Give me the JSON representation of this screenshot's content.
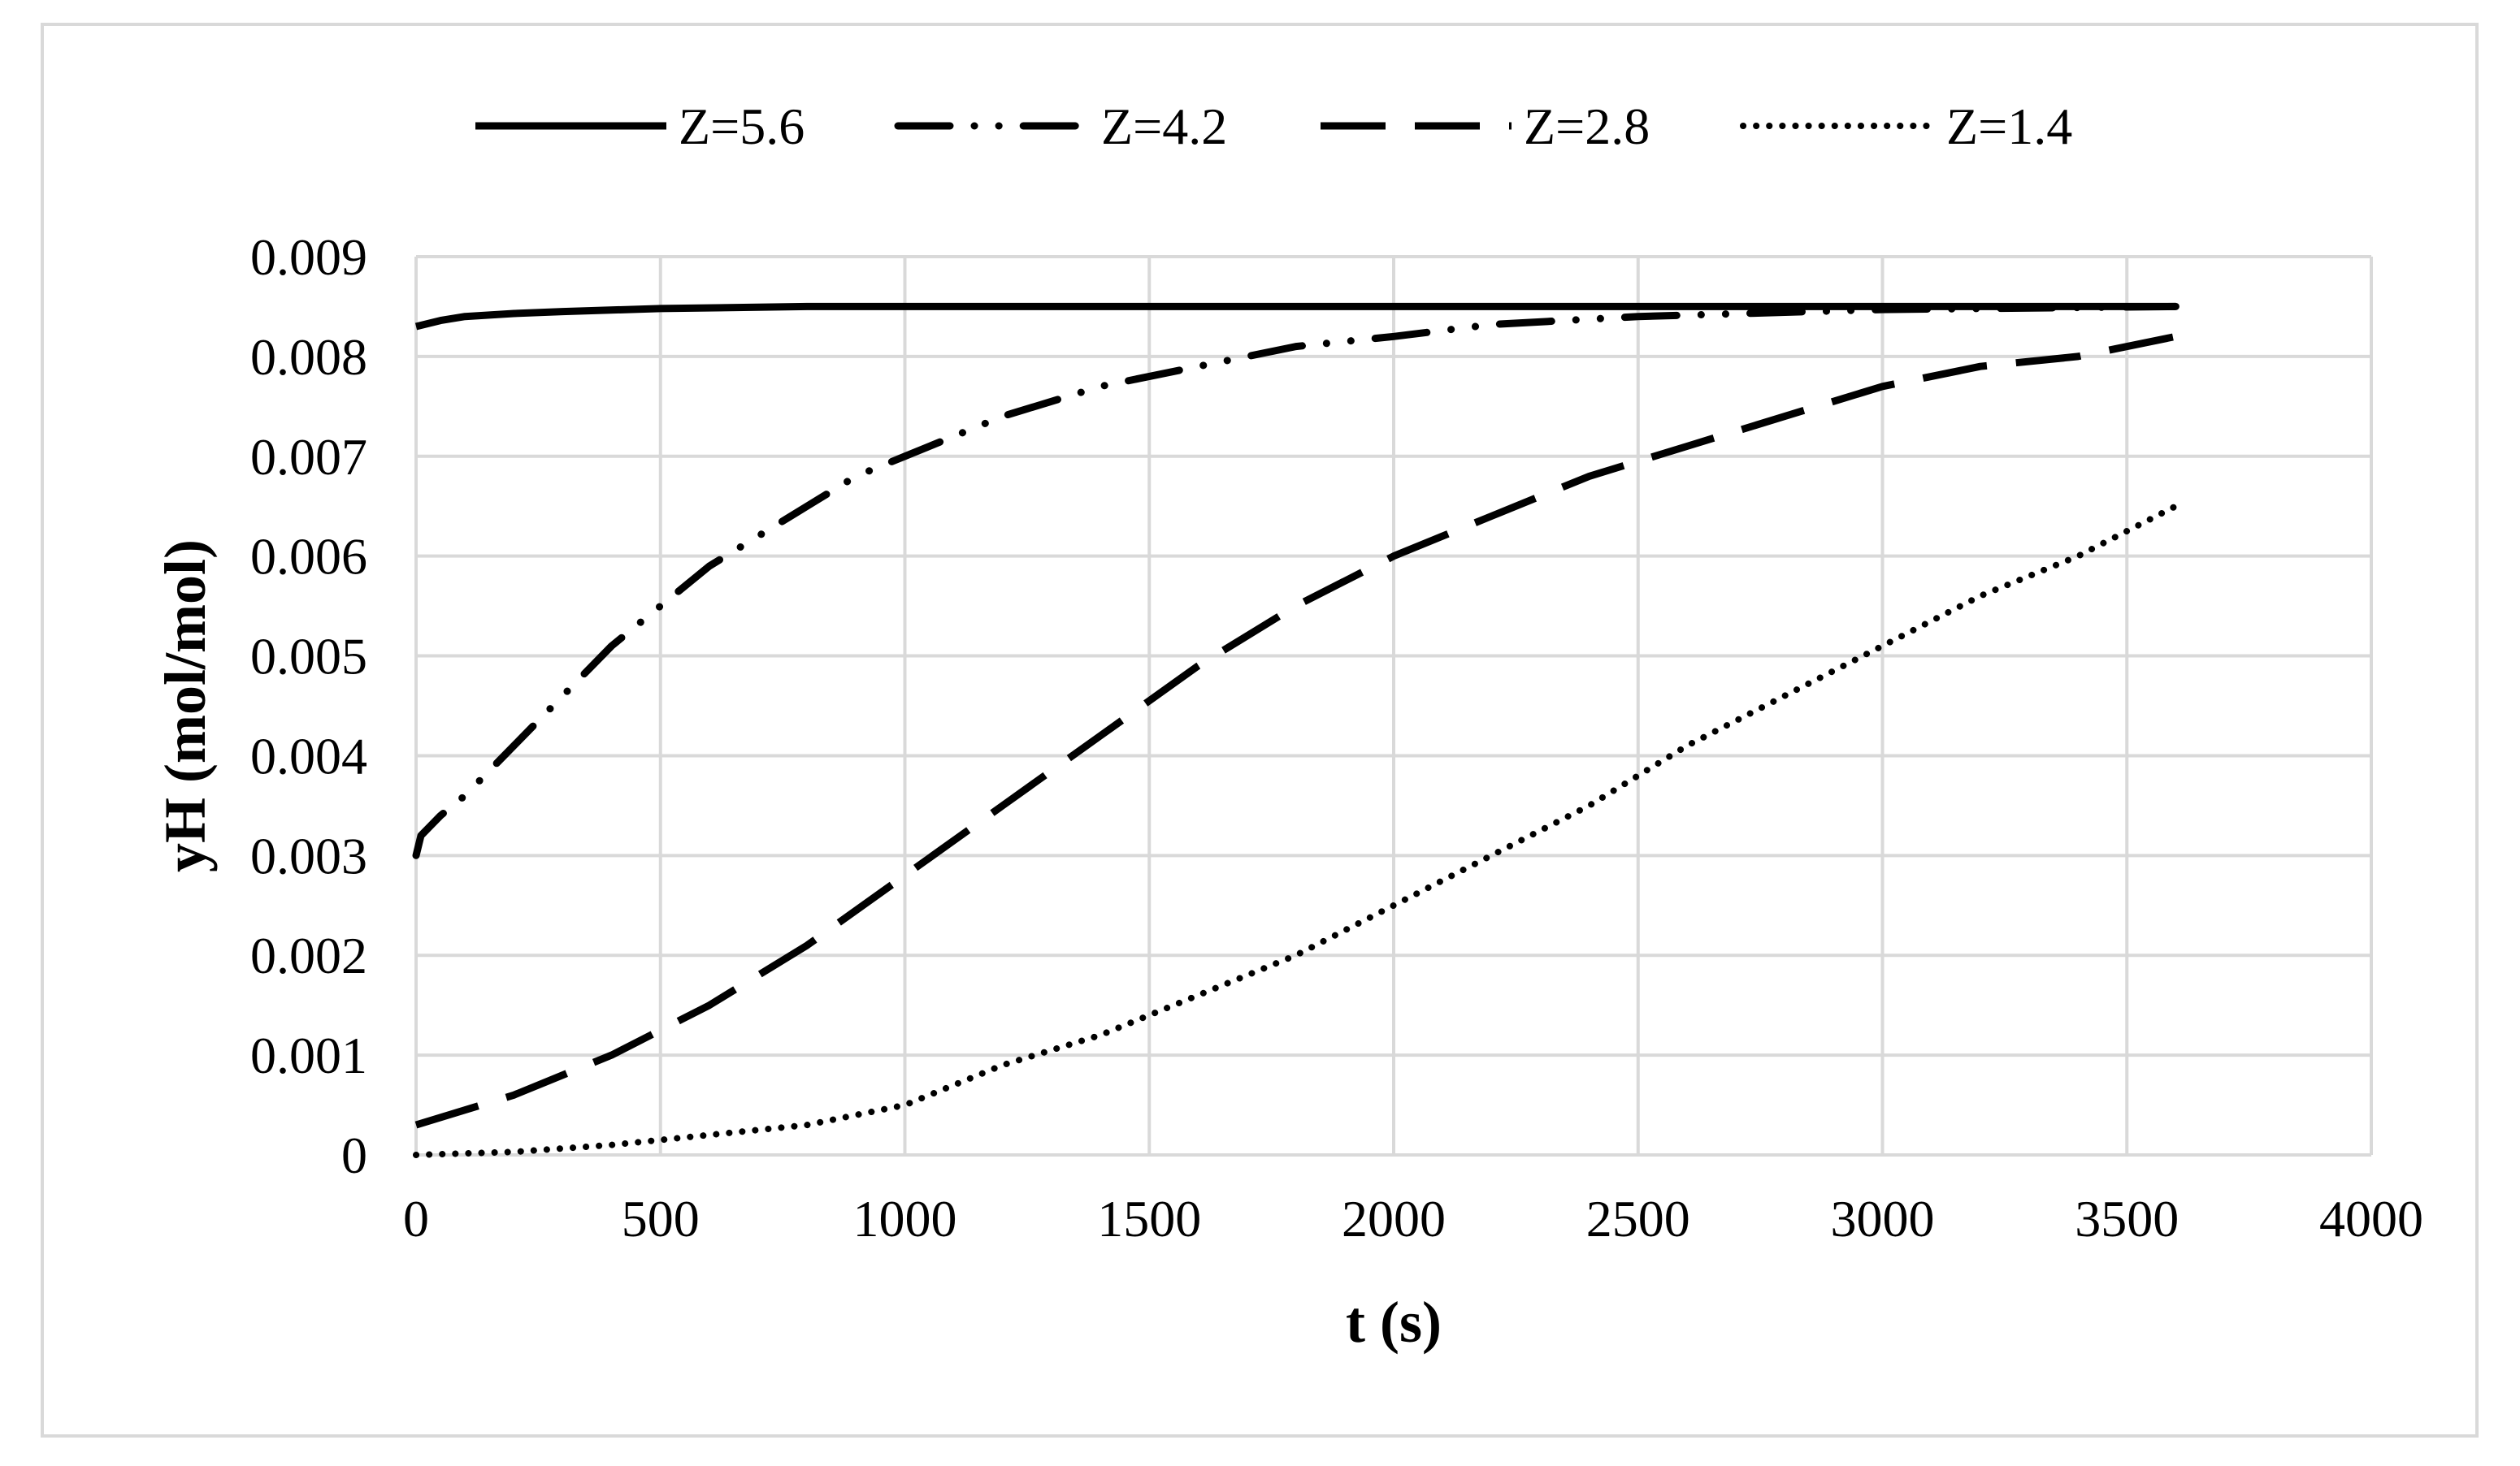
{
  "chart_data": {
    "type": "line",
    "title": "",
    "xlabel": "t (s)",
    "ylabel": "yH (mol/mol)",
    "xlim": [
      0,
      4000
    ],
    "ylim": [
      0,
      0.009
    ],
    "xticks": [
      0,
      500,
      1000,
      1500,
      2000,
      2500,
      3000,
      3500,
      4000
    ],
    "xtick_labels": [
      "0",
      "500",
      "1000",
      "1500",
      "2000",
      "2500",
      "3000",
      "3500",
      "4000"
    ],
    "yticks": [
      0,
      0.001,
      0.002,
      0.003,
      0.004,
      0.005,
      0.006,
      0.007,
      0.008,
      0.009
    ],
    "ytick_labels": [
      "0",
      "0.001",
      "0.002",
      "0.003",
      "0.004",
      "0.005",
      "0.006",
      "0.007",
      "0.008",
      "0.009"
    ],
    "grid": true,
    "legend_position": "top-center",
    "line_color": "#000000",
    "grid_color": "#d9d9d9",
    "series": [
      {
        "name": "Z=5.6",
        "style": "solid",
        "points": [
          [
            0,
            0.0083
          ],
          [
            50,
            0.00836
          ],
          [
            100,
            0.0084
          ],
          [
            200,
            0.00843
          ],
          [
            300,
            0.00845
          ],
          [
            500,
            0.00848
          ],
          [
            800,
            0.0085
          ],
          [
            1200,
            0.0085
          ],
          [
            2000,
            0.0085
          ],
          [
            3000,
            0.0085
          ],
          [
            3600,
            0.0085
          ]
        ]
      },
      {
        "name": "Z=4.2",
        "style": "long-dash-dot-dot",
        "points": [
          [
            0,
            0.003
          ],
          [
            10,
            0.0032
          ],
          [
            50,
            0.0034
          ],
          [
            100,
            0.0036
          ],
          [
            200,
            0.0041
          ],
          [
            300,
            0.0046
          ],
          [
            400,
            0.0051
          ],
          [
            500,
            0.0055
          ],
          [
            600,
            0.0059
          ],
          [
            700,
            0.0062
          ],
          [
            800,
            0.0065
          ],
          [
            900,
            0.0068
          ],
          [
            1000,
            0.007
          ],
          [
            1200,
            0.0074
          ],
          [
            1400,
            0.0077
          ],
          [
            1600,
            0.0079
          ],
          [
            1800,
            0.0081
          ],
          [
            2000,
            0.0082
          ],
          [
            2200,
            0.00832
          ],
          [
            2500,
            0.0084
          ],
          [
            3000,
            0.00847
          ],
          [
            3600,
            0.0085
          ]
        ]
      },
      {
        "name": "Z=2.8",
        "style": "long-dash",
        "points": [
          [
            0,
            0.0003
          ],
          [
            200,
            0.0006
          ],
          [
            400,
            0.001
          ],
          [
            600,
            0.0015
          ],
          [
            800,
            0.0021
          ],
          [
            1000,
            0.0028
          ],
          [
            1200,
            0.0035
          ],
          [
            1400,
            0.0042
          ],
          [
            1600,
            0.0049
          ],
          [
            1800,
            0.0055
          ],
          [
            2000,
            0.006
          ],
          [
            2200,
            0.0064
          ],
          [
            2400,
            0.0068
          ],
          [
            2600,
            0.0071
          ],
          [
            2800,
            0.0074
          ],
          [
            3000,
            0.0077
          ],
          [
            3200,
            0.0079
          ],
          [
            3400,
            0.008
          ],
          [
            3600,
            0.0082
          ]
        ]
      },
      {
        "name": "Z=1.4",
        "style": "dotted",
        "points": [
          [
            0,
            0.0
          ],
          [
            200,
            3e-05
          ],
          [
            400,
            0.0001
          ],
          [
            600,
            0.0002
          ],
          [
            800,
            0.0003
          ],
          [
            1000,
            0.0005
          ],
          [
            1200,
            0.0009
          ],
          [
            1400,
            0.0012
          ],
          [
            1600,
            0.0016
          ],
          [
            1800,
            0.002
          ],
          [
            2000,
            0.0025
          ],
          [
            2200,
            0.003
          ],
          [
            2400,
            0.0035
          ],
          [
            2600,
            0.0041
          ],
          [
            2800,
            0.0046
          ],
          [
            3000,
            0.0051
          ],
          [
            3200,
            0.0056
          ],
          [
            3400,
            0.006
          ],
          [
            3600,
            0.0065
          ]
        ]
      }
    ]
  }
}
